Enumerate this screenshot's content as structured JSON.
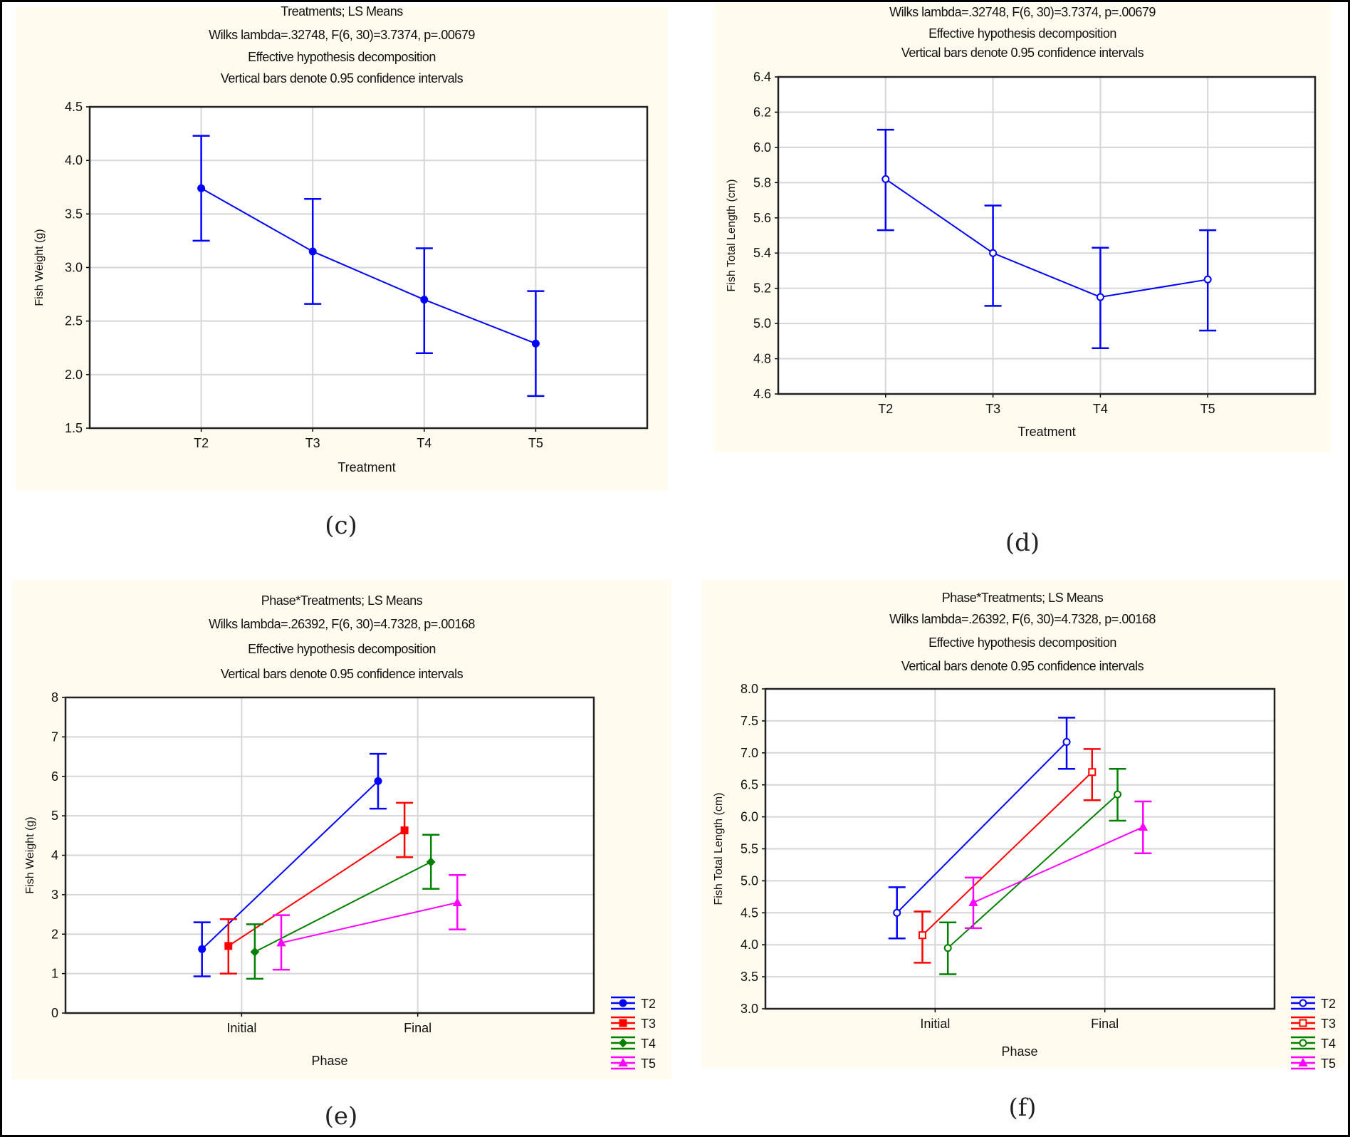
{
  "chart_data": [
    {
      "type": "line",
      "panel_label": "(c)",
      "title": [
        "Treatments; LS Means",
        "Wilks lambda=.32748, F(6, 30)=3.7374, p=.00679",
        "Effective hypothesis decomposition",
        "Vertical bars denote 0.95 confidence intervals"
      ],
      "xlabel": "Treatment",
      "ylabel": "Fish Weight (g)",
      "categories": [
        "T2",
        "T3",
        "T4",
        "T5"
      ],
      "ylim": [
        1.5,
        4.5
      ],
      "yticks": [
        "1.5",
        "2.0",
        "2.5",
        "3.0",
        "3.5",
        "4.0",
        "4.5"
      ],
      "grid": true,
      "series": [
        {
          "color": "#0000ff",
          "marker": "circle",
          "values": [
            3.74,
            3.15,
            2.7,
            2.29
          ],
          "lower": [
            3.25,
            2.66,
            2.2,
            1.8
          ],
          "upper": [
            4.23,
            3.64,
            3.18,
            2.78
          ]
        }
      ]
    },
    {
      "type": "line",
      "panel_label": "(d)",
      "title": [
        "Wilks lambda=.32748, F(6, 30)=3.7374, p=.00679",
        "Effective hypothesis decomposition",
        "Vertical bars denote 0.95 confidence intervals"
      ],
      "xlabel": "Treatment",
      "ylabel": "Fish Total Length (cm)",
      "categories": [
        "T2",
        "T3",
        "T4",
        "T5"
      ],
      "ylim": [
        4.6,
        6.4
      ],
      "yticks": [
        "4.6",
        "4.8",
        "5.0",
        "5.2",
        "5.4",
        "5.6",
        "5.8",
        "6.0",
        "6.2",
        "6.4"
      ],
      "grid": true,
      "series": [
        {
          "color": "#0000ff",
          "marker": "circle-open",
          "values": [
            5.82,
            5.4,
            5.15,
            5.25
          ],
          "lower": [
            5.53,
            5.1,
            4.86,
            4.96
          ],
          "upper": [
            6.1,
            5.67,
            5.43,
            5.53
          ]
        }
      ]
    },
    {
      "type": "line",
      "panel_label": "(e)",
      "title": [
        "Phase*Treatments; LS Means",
        "Wilks lambda=.26392, F(6, 30)=4.7328, p=.00168",
        "Effective hypothesis decomposition",
        "Vertical bars denote 0.95 confidence intervals"
      ],
      "xlabel": "Phase",
      "ylabel": "Fish Weight (g)",
      "categories": [
        "Initial",
        "Final"
      ],
      "ylim": [
        0,
        8
      ],
      "yticks": [
        "0",
        "1",
        "2",
        "3",
        "4",
        "5",
        "6",
        "7",
        "8"
      ],
      "grid": true,
      "legend_position": "bottom-right",
      "series": [
        {
          "name": "T2",
          "color": "#0000ff",
          "marker": "circle",
          "values": [
            1.62,
            5.88
          ],
          "lower": [
            0.93,
            5.18
          ],
          "upper": [
            2.3,
            6.57
          ]
        },
        {
          "name": "T3",
          "color": "#ff0000",
          "marker": "square",
          "values": [
            1.7,
            4.63
          ],
          "lower": [
            1.0,
            3.95
          ],
          "upper": [
            2.38,
            5.33
          ]
        },
        {
          "name": "T4",
          "color": "#008000",
          "marker": "diamond",
          "values": [
            1.55,
            3.83
          ],
          "lower": [
            0.87,
            3.15
          ],
          "upper": [
            2.25,
            4.52
          ]
        },
        {
          "name": "T5",
          "color": "#ff00ff",
          "marker": "triangle",
          "values": [
            1.78,
            2.8
          ],
          "lower": [
            1.1,
            2.12
          ],
          "upper": [
            2.48,
            3.5
          ]
        }
      ]
    },
    {
      "type": "line",
      "panel_label": "(f)",
      "title": [
        "Phase*Treatments; LS Means",
        "Wilks lambda=.26392, F(6, 30)=4.7328, p=.00168",
        "Effective hypothesis decomposition",
        "Vertical bars denote 0.95 confidence intervals"
      ],
      "xlabel": "Phase",
      "ylabel": "Fish Total Length (cm)",
      "categories": [
        "Initial",
        "Final"
      ],
      "ylim": [
        3.0,
        8.0
      ],
      "yticks": [
        "3.0",
        "3.5",
        "4.0",
        "4.5",
        "5.0",
        "5.5",
        "6.0",
        "6.5",
        "7.0",
        "7.5",
        "8.0"
      ],
      "grid": true,
      "legend_position": "bottom-right",
      "series": [
        {
          "name": "T2",
          "color": "#0000ff",
          "marker": "circle-open",
          "values": [
            4.5,
            7.17
          ],
          "lower": [
            4.1,
            6.75
          ],
          "upper": [
            4.9,
            7.55
          ]
        },
        {
          "name": "T3",
          "color": "#ff0000",
          "marker": "square-open",
          "values": [
            4.15,
            6.7
          ],
          "lower": [
            3.72,
            6.26
          ],
          "upper": [
            4.52,
            7.06
          ]
        },
        {
          "name": "T4",
          "color": "#008000",
          "marker": "circle-open",
          "values": [
            3.95,
            6.35
          ],
          "lower": [
            3.54,
            5.94
          ],
          "upper": [
            4.35,
            6.75
          ]
        },
        {
          "name": "T5",
          "color": "#ff00ff",
          "marker": "triangle",
          "values": [
            4.66,
            5.84
          ],
          "lower": [
            4.26,
            5.43
          ],
          "upper": [
            5.05,
            6.24
          ]
        }
      ]
    }
  ]
}
